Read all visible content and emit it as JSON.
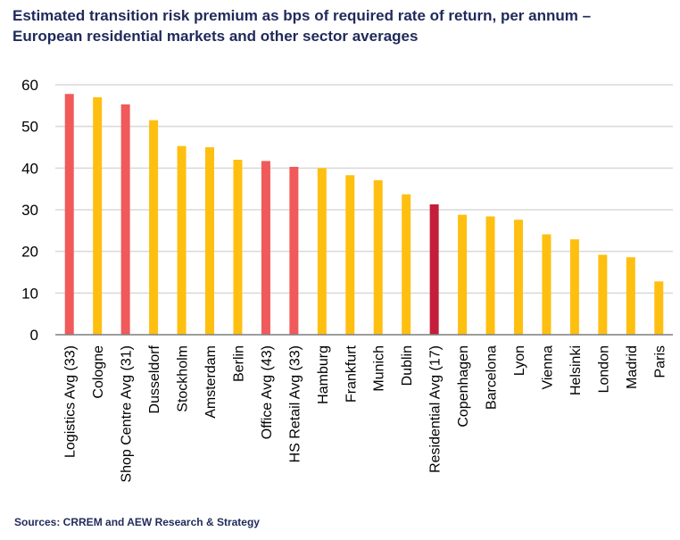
{
  "chart_data": {
    "type": "bar",
    "title": "Estimated transition risk premium as bps of required rate of return, per annum –",
    "subtitle": "European residential markets and other sector averages",
    "source": "Sources: CRREM and AEW Research & Strategy",
    "ylim": [
      0,
      60
    ],
    "yticks": [
      0,
      10,
      20,
      30,
      40,
      50,
      60
    ],
    "grid": true,
    "legend": "none",
    "categories": [
      "Logistics Avg (33)",
      "Cologne",
      "Shop Centre Avg (31)",
      "Dusseldorf",
      "Stockholm",
      "Amsterdam",
      "Berlin",
      "Office Avg (43)",
      "HS Retail Avg (33)",
      "Hamburg",
      "Frankfurt",
      "Munich",
      "Dublin",
      "Residential Avg (17)",
      "Copenhagen",
      "Barcelona",
      "Lyon",
      "Vienna",
      "Helsinki",
      "London",
      "Madrid",
      "Paris"
    ],
    "values": [
      57.8,
      57.0,
      55.3,
      51.5,
      45.3,
      45.0,
      42.0,
      41.7,
      40.3,
      40.0,
      38.3,
      37.1,
      33.7,
      31.3,
      28.8,
      28.4,
      27.6,
      24.1,
      22.9,
      19.2,
      18.6,
      12.8
    ],
    "bar_groups": [
      "sector",
      "market",
      "sector",
      "market",
      "market",
      "market",
      "market",
      "sector",
      "sector",
      "market",
      "market",
      "market",
      "market",
      "residential",
      "market",
      "market",
      "market",
      "market",
      "market",
      "market",
      "market",
      "market"
    ],
    "colors": {
      "sector": "#f05a5b",
      "market": "#ffbf10",
      "residential": "#c41e3a",
      "grid": "#d9d9d9",
      "axis": "#7f7f7f"
    }
  }
}
